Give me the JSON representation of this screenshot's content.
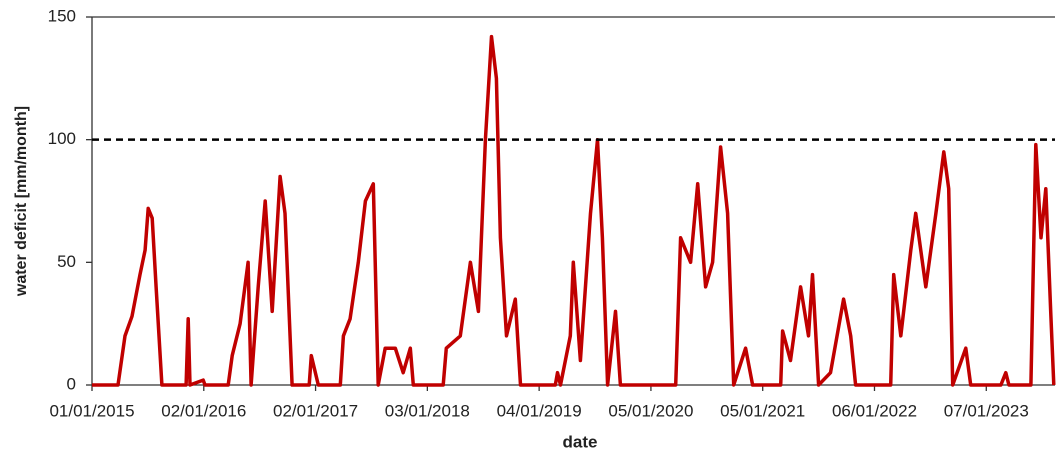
{
  "chart_data": {
    "type": "line",
    "x_label": "date",
    "y_label": "water deficit [mm/month]",
    "color": "#c00000",
    "threshold": 100,
    "x": [
      "2015-01-01",
      "2015-03-27",
      "2015-04-19",
      "2015-05-12",
      "2015-06-07",
      "2015-06-24",
      "2015-07-04",
      "2015-07-17",
      "2015-07-30",
      "2015-08-18",
      "2015-11-05",
      "2015-11-12",
      "2015-11-18",
      "2015-12-31",
      "2016-01-06",
      "2016-03-22",
      "2016-04-04",
      "2016-04-30",
      "2016-05-26",
      "2016-06-05",
      "2016-06-28",
      "2016-07-21",
      "2016-08-13",
      "2016-09-08",
      "2016-09-24",
      "2016-10-17",
      "2016-12-12",
      "2016-12-19",
      "2017-01-11",
      "2017-03-24",
      "2017-04-03",
      "2017-04-25",
      "2017-05-22",
      "2017-06-14",
      "2017-07-10",
      "2017-07-26",
      "2017-08-18",
      "2017-09-20",
      "2017-10-16",
      "2017-11-08",
      "2017-11-18",
      "2018-02-24",
      "2018-03-06",
      "2018-04-21",
      "2018-05-24",
      "2018-06-19",
      "2018-07-12",
      "2018-08-01",
      "2018-08-17",
      "2018-08-30",
      "2018-09-19",
      "2018-10-18",
      "2018-11-04",
      "2019-02-26",
      "2019-03-05",
      "2019-03-15",
      "2019-04-16",
      "2019-04-26",
      "2019-05-19",
      "2019-06-21",
      "2019-07-14",
      "2019-07-30",
      "2019-08-16",
      "2019-09-11",
      "2019-09-27",
      "2020-03-26",
      "2020-04-11",
      "2020-05-14",
      "2020-06-06",
      "2020-07-02",
      "2020-07-25",
      "2020-08-20",
      "2020-09-12",
      "2020-10-02",
      "2020-11-10",
      "2020-12-03",
      "2021-03-05",
      "2021-03-11",
      "2021-04-06",
      "2021-05-09",
      "2021-06-04",
      "2021-06-17",
      "2021-07-07",
      "2021-08-15",
      "2021-09-27",
      "2021-10-20",
      "2021-11-05",
      "2022-02-28",
      "2022-03-10",
      "2022-04-02",
      "2022-05-05",
      "2022-05-21",
      "2022-06-23",
      "2022-07-26",
      "2022-08-21",
      "2022-09-06",
      "2022-09-19",
      "2022-11-01",
      "2022-11-17",
      "2023-02-24",
      "2023-03-12",
      "2023-03-22",
      "2023-06-02",
      "2023-06-18",
      "2023-07-05",
      "2023-07-21",
      "2023-08-06",
      "2023-08-16"
    ],
    "values": [
      0,
      0,
      20,
      28,
      45,
      55,
      72,
      68,
      40,
      0,
      0,
      27,
      0,
      2,
      0,
      0,
      12,
      25,
      50,
      0,
      40,
      75,
      30,
      85,
      70,
      0,
      0,
      12,
      0,
      0,
      20,
      27,
      50,
      75,
      82,
      0,
      15,
      15,
      5,
      15,
      0,
      0,
      15,
      20,
      50,
      30,
      100,
      142,
      125,
      60,
      20,
      35,
      0,
      0,
      5,
      0,
      20,
      50,
      10,
      70,
      100,
      60,
      0,
      30,
      0,
      0,
      60,
      50,
      82,
      40,
      50,
      97,
      70,
      0,
      15,
      0,
      0,
      22,
      10,
      40,
      20,
      45,
      0,
      5,
      35,
      20,
      0,
      0,
      45,
      20,
      55,
      70,
      40,
      70,
      95,
      80,
      0,
      15,
      0,
      0,
      5,
      0,
      0,
      98,
      60,
      80,
      30,
      0
    ],
    "xlim": [
      "2015-01-01",
      "2023-08-20"
    ],
    "xticks": [
      {
        "value": "2015-01-01",
        "label": "01/01/2015"
      },
      {
        "value": "2016-01-02",
        "label": "02/01/2016"
      },
      {
        "value": "2017-01-02",
        "label": "02/01/2017"
      },
      {
        "value": "2018-01-03",
        "label": "03/01/2018"
      },
      {
        "value": "2019-01-04",
        "label": "04/01/2019"
      },
      {
        "value": "2020-01-05",
        "label": "05/01/2020"
      },
      {
        "value": "2021-01-05",
        "label": "05/01/2021"
      },
      {
        "value": "2022-01-06",
        "label": "06/01/2022"
      },
      {
        "value": "2023-01-07",
        "label": "07/01/2023"
      }
    ],
    "ylim": [
      0,
      150
    ],
    "yticks": [
      0,
      50,
      100,
      150
    ],
    "grid": false
  }
}
